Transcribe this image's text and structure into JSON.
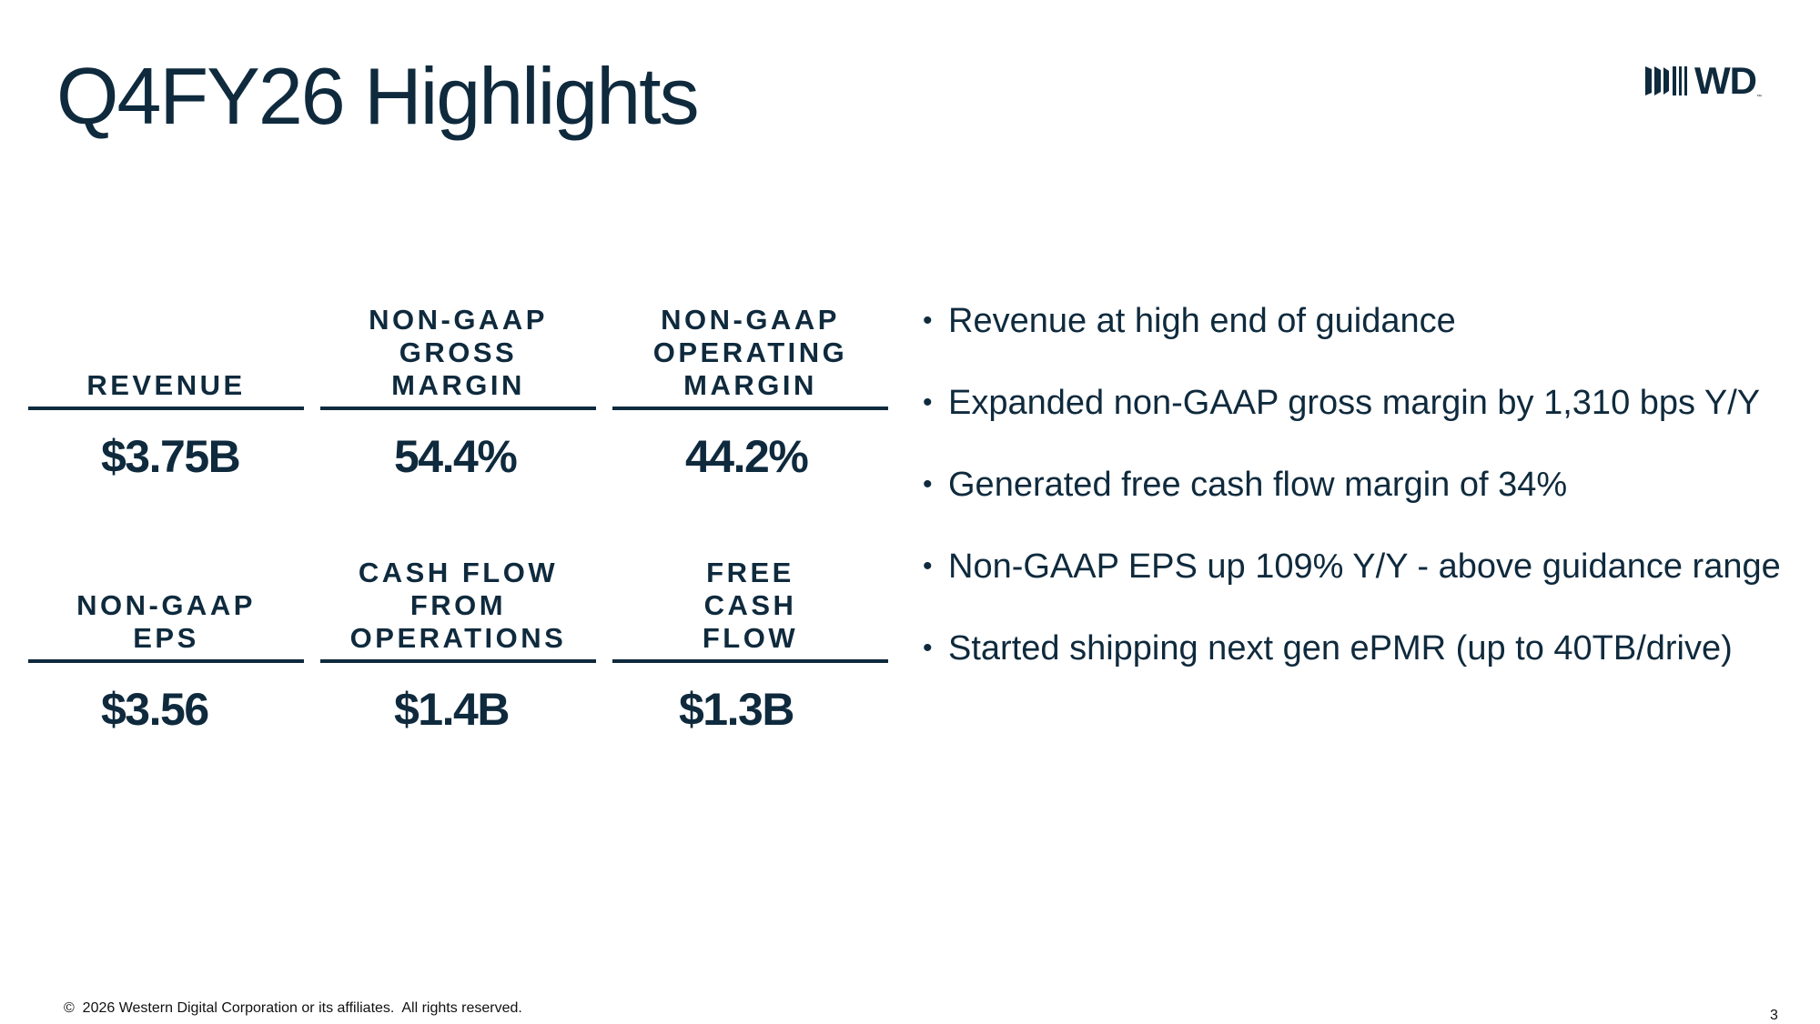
{
  "slide": {
    "title": "Q4FY26 Highlights",
    "logo_text": "WD",
    "logo_tm": "™",
    "footer": "©  2026 Western Digital Corporation or its affiliates.  All rights reserved.",
    "page_number": "3"
  },
  "metrics": [
    {
      "label": "REVENUE",
      "value": "$3.75B"
    },
    {
      "label": "NON-GAAP\nGROSS\nMARGIN",
      "value": "54.4%"
    },
    {
      "label": "NON-GAAP\nOPERATING\nMARGIN",
      "value": "44.2%"
    },
    {
      "label": "NON-GAAP\nEPS",
      "value": "$3.56"
    },
    {
      "label": "CASH FLOW\nFROM\nOPERATIONS",
      "value": "$1.4B"
    },
    {
      "label": "FREE\nCASH\nFLOW",
      "value": "$1.3B"
    }
  ],
  "bullets": [
    "Revenue at high end of guidance",
    "Expanded non-GAAP gross margin by 1,310 bps Y/Y",
    "Generated free cash flow margin of 34%",
    "Non-GAAP EPS up 109% Y/Y - above guidance range",
    "Started shipping next gen ePMR (up to 40TB/drive)"
  ],
  "colors": {
    "brand_navy": "#0f2a3d",
    "text_black": "#111111",
    "background": "#ffffff"
  }
}
